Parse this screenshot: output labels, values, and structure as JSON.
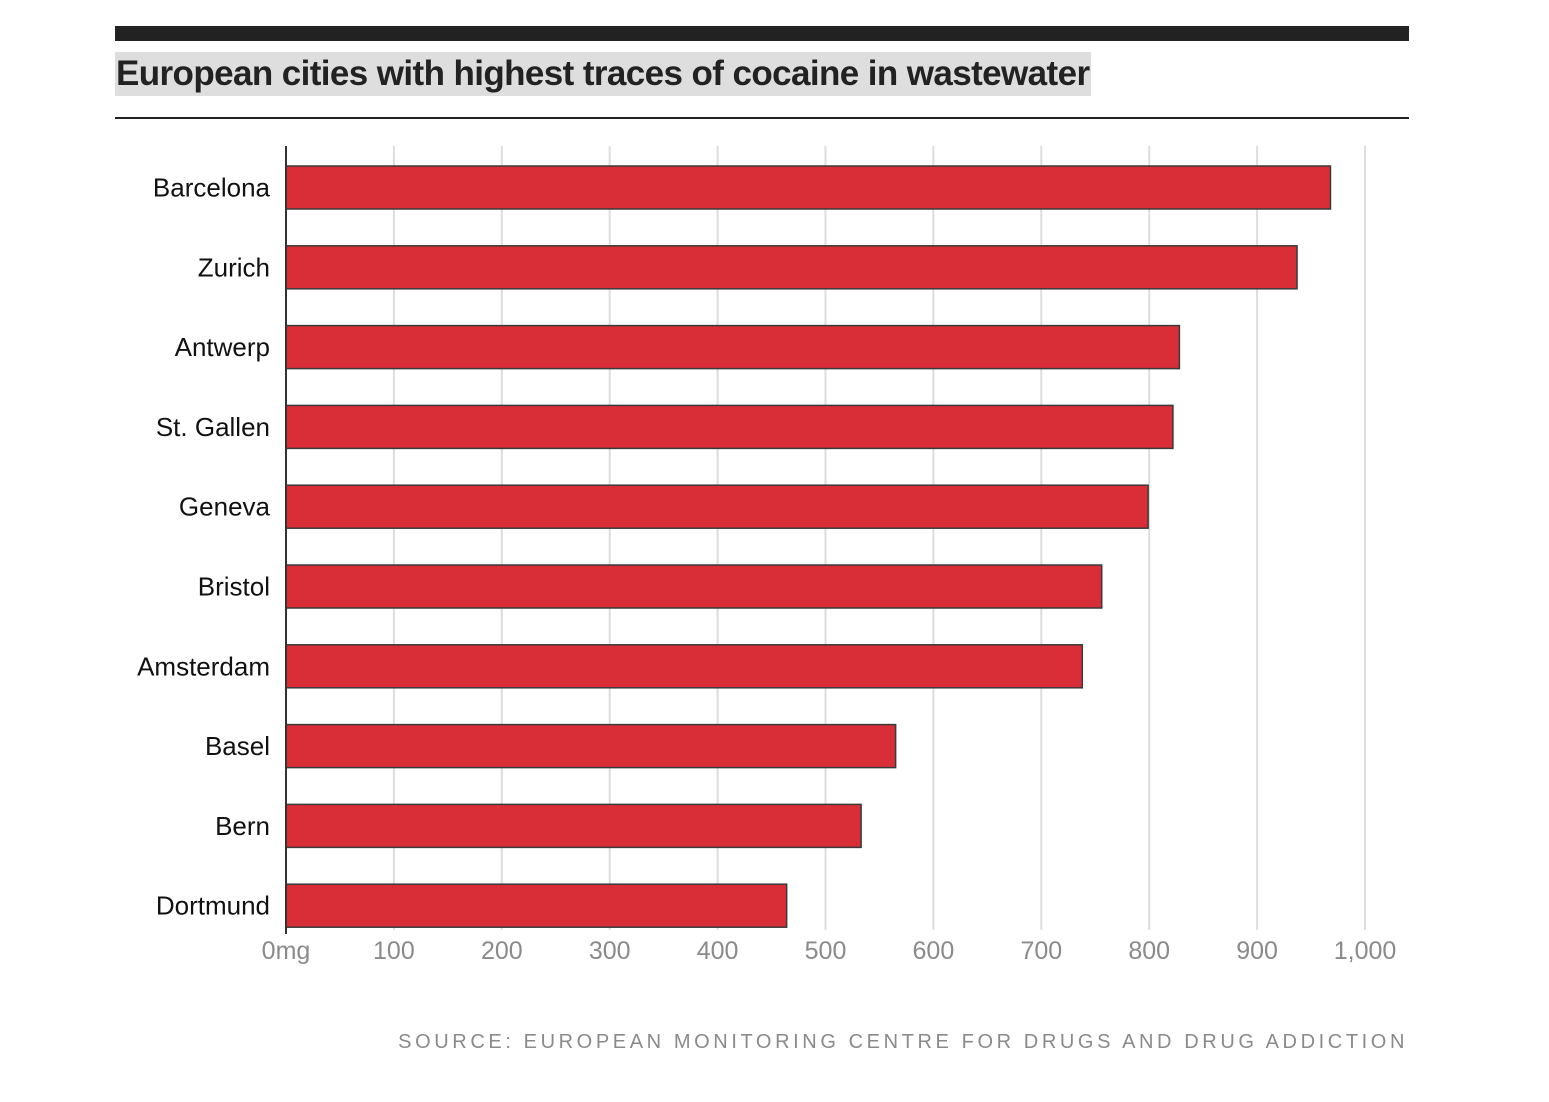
{
  "title": "European cities with highest traces of cocaine in wastewater",
  "source": "SOURCE: EUROPEAN MONITORING CENTRE FOR DRUGS AND DRUG ADDICTION",
  "colors": {
    "bar": "#d92e37",
    "bar_stroke": "#3a3a3a",
    "grid": "#dddddd",
    "axis": "#333333",
    "title_highlight": "#dedede"
  },
  "chart_data": {
    "type": "bar",
    "orientation": "horizontal",
    "title": "European cities with highest traces of cocaine in wastewater",
    "xlabel": "",
    "ylabel": "",
    "xlim": [
      0,
      1000
    ],
    "grid": true,
    "categories": [
      "Barcelona",
      "Zurich",
      "Antwerp",
      "St. Gallen",
      "Geneva",
      "Bristol",
      "Amsterdam",
      "Basel",
      "Bern",
      "Dortmund"
    ],
    "values": [
      968,
      937,
      828,
      822,
      799,
      756,
      738,
      565,
      533,
      464
    ],
    "ticks": [
      0,
      100,
      200,
      300,
      400,
      500,
      600,
      700,
      800,
      900,
      1000
    ],
    "tick_labels": [
      "0mg",
      "100",
      "200",
      "300",
      "400",
      "500",
      "600",
      "700",
      "800",
      "900",
      "1,000"
    ]
  }
}
